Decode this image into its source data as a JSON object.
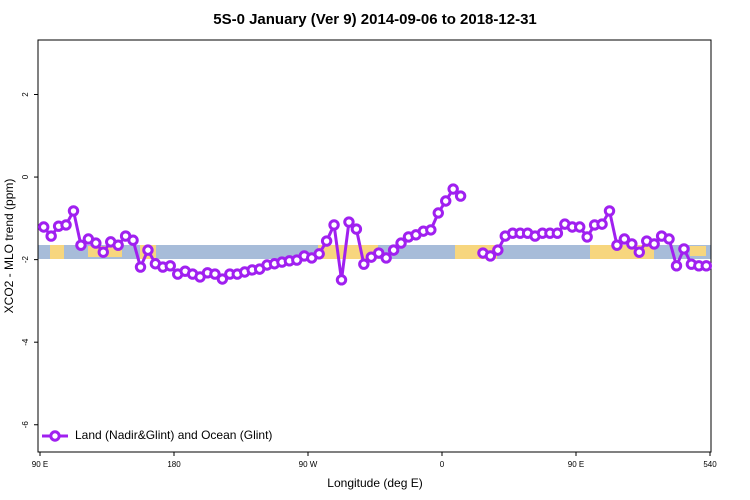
{
  "chart_data": {
    "type": "line",
    "title": "5S-0 January (Ver 9)   2014-09-06 to 2018-12-31",
    "xlabel": "Longitude (deg E)",
    "ylabel": "XCO2 - MLO trend (ppm)",
    "xlim": [
      90,
      540
    ],
    "ylim": [
      -6.66,
      3.32
    ],
    "xticks": [
      {
        "value": 90,
        "label": "90 E"
      },
      180,
      {
        "value": 270,
        "label": "90 W"
      },
      {
        "value": 360,
        "label": "0"
      },
      {
        "value": 450,
        "label": "90 E"
      },
      540
    ],
    "yticks": [
      -6,
      -4,
      -2,
      0,
      2
    ],
    "x": [
      92.5,
      97.5,
      102.5,
      107.5,
      112.5,
      117.5,
      122.5,
      127.5,
      132.5,
      137.5,
      142.5,
      147.5,
      152.5,
      157.5,
      162.5,
      167.5,
      172.5,
      177.5,
      182.5,
      187.5,
      192.5,
      197.5,
      202.5,
      207.5,
      212.5,
      217.5,
      222.5,
      227.5,
      232.5,
      237.5,
      242.5,
      247.5,
      252.5,
      257.5,
      262.5,
      267.5,
      272.5,
      277.5,
      282.5,
      287.5,
      292.5,
      297.5,
      302.5,
      307.5,
      312.5,
      317.5,
      322.5,
      327.5,
      332.5,
      337.5,
      342.5,
      347.5,
      352.5,
      357.5,
      362.5,
      367.5,
      372.5,
      377.5,
      382.5,
      387.5,
      392.5,
      397.5,
      402.5,
      407.5,
      412.5,
      417.5,
      422.5,
      427.5,
      432.5,
      437.5,
      442.5,
      447.5,
      452.5,
      457.5,
      462.5,
      467.5,
      472.5,
      477.5,
      482.5,
      487.5,
      492.5,
      497.5,
      502.5,
      507.5,
      512.5,
      517.5,
      522.5,
      527.5,
      532.5,
      537.5
    ],
    "series": [
      {
        "name": "Land (Nadir&Glint) and Ocean (Glint)",
        "color": "#a020f0",
        "values": [
          -1.21,
          -1.43,
          -1.19,
          -1.16,
          -0.82,
          -1.65,
          -1.5,
          -1.6,
          -1.82,
          -1.57,
          -1.65,
          -1.43,
          -1.53,
          -2.18,
          -1.77,
          -2.1,
          -2.18,
          -2.15,
          -2.35,
          -2.28,
          -2.35,
          -2.42,
          -2.32,
          -2.35,
          -2.47,
          -2.35,
          -2.35,
          -2.3,
          -2.25,
          -2.23,
          -2.13,
          -2.1,
          -2.06,
          -2.03,
          -2.01,
          -1.91,
          -1.96,
          -1.86,
          -1.55,
          -1.16,
          -2.49,
          -1.09,
          -1.26,
          -2.11,
          -1.94,
          -1.84,
          -1.96,
          -1.77,
          -1.6,
          -1.45,
          -1.4,
          -1.31,
          -1.28,
          -0.87,
          -0.58,
          -0.29,
          -0.46,
          null,
          null,
          -1.84,
          -1.91,
          -1.77,
          -1.43,
          -1.36,
          -1.36,
          -1.36,
          -1.43,
          -1.36,
          -1.36,
          -1.36,
          -1.14,
          -1.21,
          -1.21,
          -1.45,
          -1.16,
          -1.14,
          -0.82,
          -1.65,
          -1.5,
          -1.62,
          -1.82,
          -1.55,
          -1.62,
          -1.43,
          -1.5,
          -2.15,
          -1.74,
          -2.11,
          -2.15,
          -2.15
        ]
      }
    ]
  }
}
